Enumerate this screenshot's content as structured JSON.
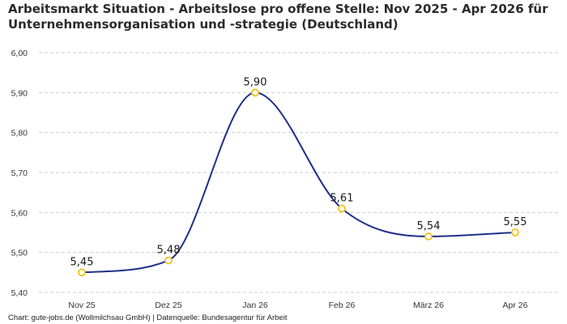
{
  "title": "Arbeitsmarkt Situation - Arbeitslose pro offene Stelle: Nov 2025 - Apr 2026 für Unternehmensorganisation und -strategie (Deutschland)",
  "source": "Chart: gute-jobs.de (Wollmilchsau GmbH) | Datenquelle: Bundesagentur für Arbeit",
  "colors": {
    "line": "#1f2f8a",
    "marker_stroke": "#f2c21b",
    "marker_fill": "#ffffff",
    "grid": "#cccccc"
  },
  "chart_data": {
    "type": "line",
    "title": "Arbeitsmarkt Situation - Arbeitslose pro offene Stelle: Nov 2025 - Apr 2026 für Unternehmensorganisation und -strategie (Deutschland)",
    "xlabel": "",
    "ylabel": "",
    "categories": [
      "Nov 25",
      "Dez 25",
      "Jan 26",
      "Feb 26",
      "März 26",
      "Apr 26"
    ],
    "values": [
      5.45,
      5.48,
      5.9,
      5.61,
      5.54,
      5.55
    ],
    "data_labels": [
      "5,45",
      "5,48",
      "5,90",
      "5,61",
      "5,54",
      "5,55"
    ],
    "ylim": [
      5.4,
      6.0
    ],
    "yticks": [
      5.4,
      5.5,
      5.6,
      5.7,
      5.8,
      5.9,
      6.0
    ],
    "ytick_labels": [
      "5,40",
      "5,50",
      "5,60",
      "5,70",
      "5,80",
      "5,90",
      "6,00"
    ],
    "grid": true,
    "smooth": true,
    "legend": "none"
  }
}
